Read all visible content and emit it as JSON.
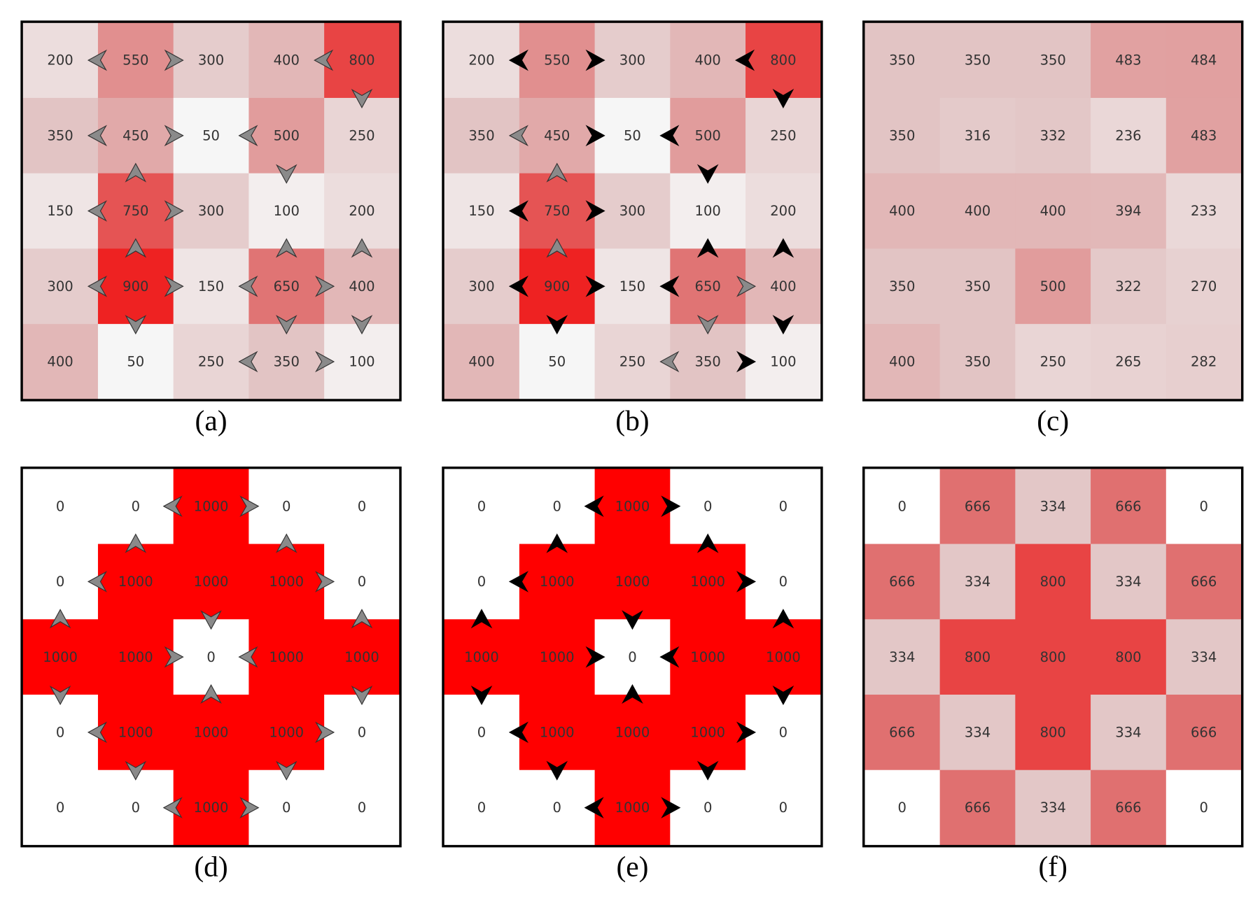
{
  "panels": [
    {
      "caption": "(a)",
      "grid": [
        [
          200,
          550,
          300,
          400,
          800
        ],
        [
          350,
          450,
          50,
          500,
          250
        ],
        [
          150,
          750,
          300,
          100,
          200
        ],
        [
          300,
          900,
          150,
          650,
          400
        ],
        [
          400,
          50,
          250,
          350,
          100
        ]
      ]
    },
    {
      "caption": "(b)",
      "grid": [
        [
          200,
          550,
          300,
          400,
          800
        ],
        [
          350,
          450,
          50,
          500,
          250
        ],
        [
          150,
          750,
          300,
          100,
          200
        ],
        [
          300,
          900,
          150,
          650,
          400
        ],
        [
          400,
          50,
          250,
          350,
          100
        ]
      ]
    },
    {
      "caption": "(c)",
      "grid": [
        [
          350,
          350,
          350,
          483,
          484
        ],
        [
          350,
          316,
          332,
          236,
          483
        ],
        [
          400,
          400,
          400,
          394,
          233
        ],
        [
          350,
          350,
          500,
          322,
          270
        ],
        [
          400,
          350,
          250,
          265,
          282
        ]
      ]
    },
    {
      "caption": "(d)",
      "grid": [
        [
          0,
          0,
          1000,
          0,
          0
        ],
        [
          0,
          1000,
          1000,
          1000,
          0
        ],
        [
          1000,
          1000,
          0,
          1000,
          1000
        ],
        [
          0,
          1000,
          1000,
          1000,
          0
        ],
        [
          0,
          0,
          1000,
          0,
          0
        ]
      ]
    },
    {
      "caption": "(e)",
      "grid": [
        [
          0,
          0,
          1000,
          0,
          0
        ],
        [
          0,
          1000,
          1000,
          1000,
          0
        ],
        [
          1000,
          1000,
          0,
          1000,
          1000
        ],
        [
          0,
          1000,
          1000,
          1000,
          0
        ],
        [
          0,
          0,
          1000,
          0,
          0
        ]
      ]
    },
    {
      "caption": "(f)",
      "grid": [
        [
          0,
          666,
          334,
          666,
          0
        ],
        [
          666,
          334,
          800,
          334,
          666
        ],
        [
          334,
          800,
          800,
          800,
          334
        ],
        [
          666,
          334,
          800,
          334,
          666
        ],
        [
          0,
          666,
          334,
          666,
          0
        ]
      ]
    }
  ]
}
